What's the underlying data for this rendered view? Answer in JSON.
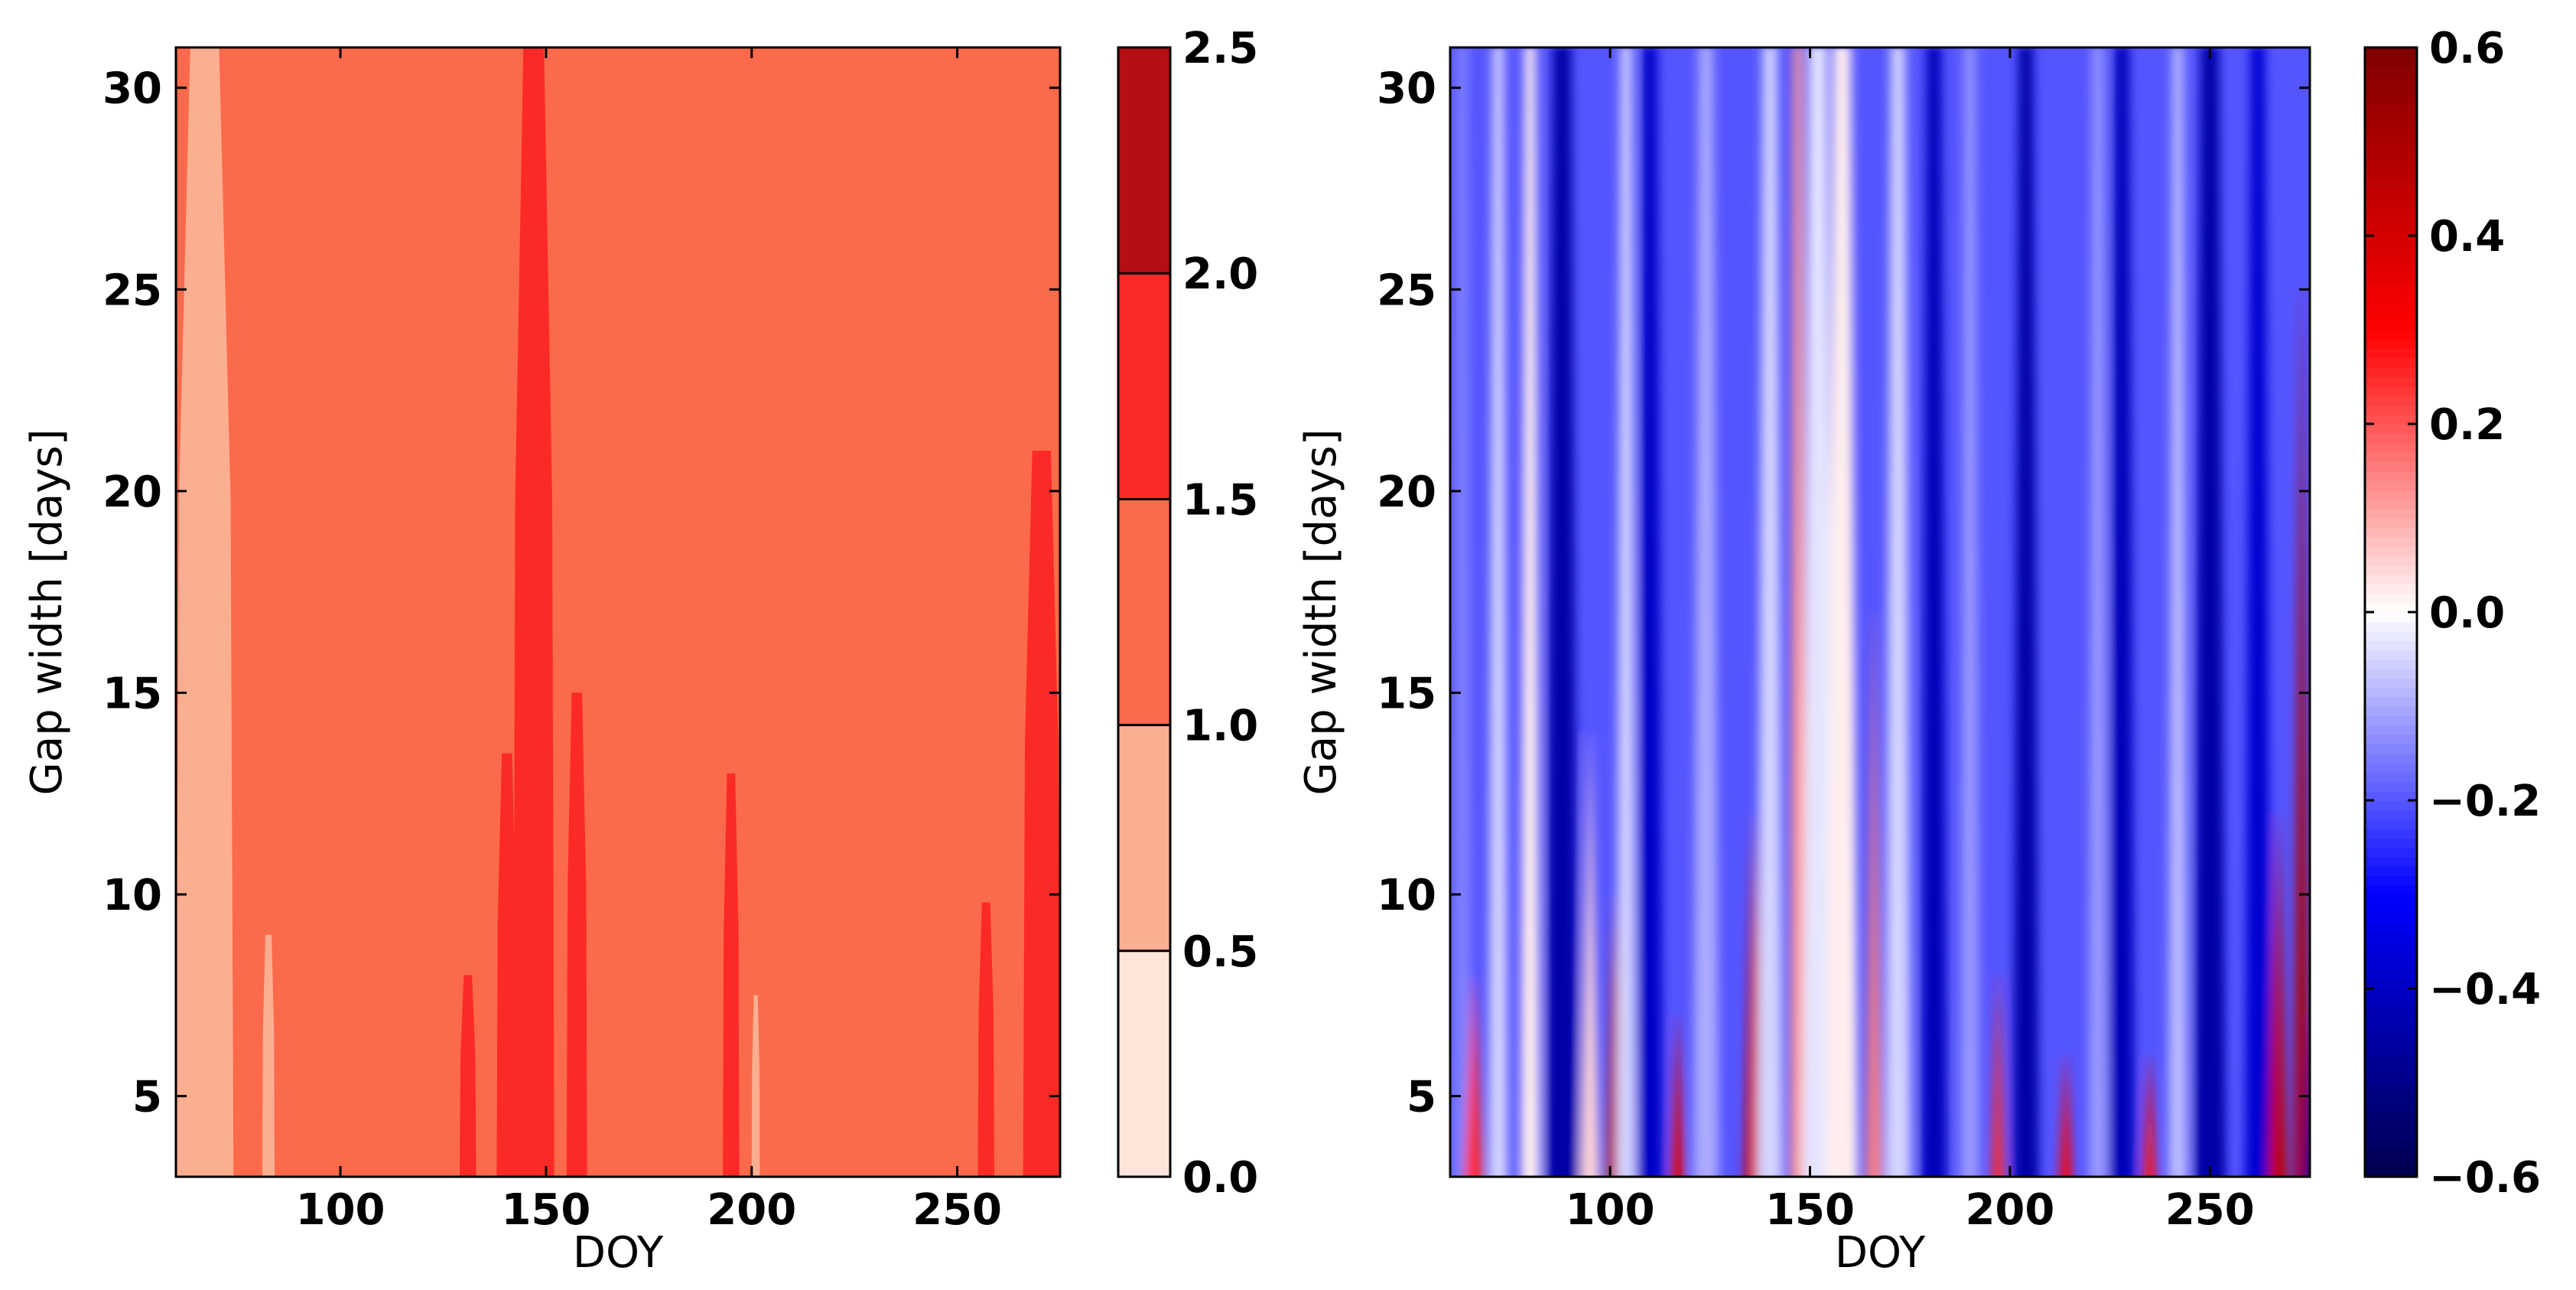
{
  "chart_data": [
    {
      "type": "heatmap",
      "title": "",
      "xlabel": "DOY",
      "ylabel": "Gap width [days]",
      "xlim": [
        60,
        275
      ],
      "ylim": [
        3,
        31
      ],
      "x_ticks": [
        100,
        150,
        200,
        250
      ],
      "y_ticks": [
        5,
        10,
        15,
        20,
        25,
        30
      ],
      "colorbar": {
        "type": "discrete",
        "levels": [
          0.0,
          0.5,
          1.0,
          1.5,
          2.0,
          2.5
        ],
        "tick_labels": [
          "0.0",
          "0.5",
          "1.0",
          "1.5",
          "2.0",
          "2.5"
        ],
        "colors": [
          "#fee5d9",
          "#fcae91",
          "#fb6a4a",
          "#fb2a26",
          "#b50e14"
        ]
      },
      "dominant_band": [
        1.0,
        1.5
      ],
      "regions": [
        {
          "band": [
            0.5,
            1.0
          ],
          "x_range": [
            60,
            74
          ],
          "y_range": [
            3,
            31
          ],
          "note": "tapering band near start"
        },
        {
          "band": [
            0.5,
            1.0
          ],
          "x_range": [
            81,
            84
          ],
          "y_range": [
            3,
            9
          ]
        },
        {
          "band": [
            0.5,
            1.0
          ],
          "x_range": [
            200,
            202
          ],
          "y_range": [
            3,
            7.5
          ]
        },
        {
          "band": [
            1.5,
            2.0
          ],
          "x_range": [
            142,
            152
          ],
          "y_range": [
            3,
            31
          ],
          "note": "main vertical streak"
        },
        {
          "band": [
            1.5,
            2.0
          ],
          "x_range": [
            155,
            160
          ],
          "y_range": [
            3,
            15
          ]
        },
        {
          "band": [
            1.5,
            2.0
          ],
          "x_range": [
            138,
            143
          ],
          "y_range": [
            3,
            13.5
          ]
        },
        {
          "band": [
            1.5,
            2.0
          ],
          "x_range": [
            193,
            197
          ],
          "y_range": [
            3,
            13
          ]
        },
        {
          "band": [
            1.5,
            2.0
          ],
          "x_range": [
            255,
            259
          ],
          "y_range": [
            3,
            9.8
          ]
        },
        {
          "band": [
            1.5,
            2.0
          ],
          "x_range": [
            266,
            275
          ],
          "y_range": [
            3,
            21
          ],
          "note": "right-edge streak"
        },
        {
          "band": [
            1.5,
            2.0
          ],
          "x_range": [
            129,
            133
          ],
          "y_range": [
            3,
            8
          ]
        }
      ]
    },
    {
      "type": "heatmap",
      "title": "",
      "xlabel": "DOY",
      "ylabel": "Gap width [days]",
      "xlim": [
        60,
        275
      ],
      "ylim": [
        3,
        31
      ],
      "x_ticks": [
        100,
        150,
        200,
        250
      ],
      "y_ticks": [
        5,
        10,
        15,
        20,
        25,
        30
      ],
      "colorbar": {
        "type": "continuous",
        "colormap": "seismic",
        "range": [
          -0.6,
          0.6
        ],
        "ticks": [
          -0.6,
          -0.4,
          -0.2,
          0.0,
          0.2,
          0.4,
          0.6
        ],
        "tick_labels": [
          "−0.6",
          "−0.4",
          "−0.2",
          "0.0",
          "0.2",
          "0.4",
          "0.6"
        ]
      },
      "background_value": -0.2,
      "streaks": [
        {
          "x": 63,
          "value": -0.15,
          "width": 3,
          "gap_max": 31
        },
        {
          "x": 66,
          "value": 0.25,
          "width": 3,
          "gap_max": 8
        },
        {
          "x": 72,
          "value": -0.05,
          "width": 3,
          "gap_max": 31
        },
        {
          "x": 80,
          "value": 0.02,
          "width": 3,
          "gap_max": 31
        },
        {
          "x": 88,
          "value": -0.45,
          "width": 5,
          "gap_max": 31
        },
        {
          "x": 95,
          "value": 0.05,
          "width": 3,
          "gap_max": 14
        },
        {
          "x": 101,
          "value": 0.45,
          "width": 2.5,
          "gap_max": 10
        },
        {
          "x": 104,
          "value": -0.05,
          "width": 3,
          "gap_max": 31
        },
        {
          "x": 110,
          "value": -0.4,
          "width": 4,
          "gap_max": 31
        },
        {
          "x": 117,
          "value": 0.35,
          "width": 2,
          "gap_max": 7
        },
        {
          "x": 124,
          "value": -0.1,
          "width": 4,
          "gap_max": 31
        },
        {
          "x": 136,
          "value": 0.4,
          "width": 3,
          "gap_max": 12
        },
        {
          "x": 140,
          "value": -0.05,
          "width": 4,
          "gap_max": 31
        },
        {
          "x": 147,
          "value": 0.12,
          "width": 2.5,
          "gap_max": 31
        },
        {
          "x": 152,
          "value": -0.03,
          "width": 5,
          "gap_max": 31
        },
        {
          "x": 158,
          "value": 0.02,
          "width": 5,
          "gap_max": 31
        },
        {
          "x": 166,
          "value": 0.15,
          "width": 2.5,
          "gap_max": 17
        },
        {
          "x": 172,
          "value": -0.05,
          "width": 4,
          "gap_max": 31
        },
        {
          "x": 181,
          "value": -0.42,
          "width": 4,
          "gap_max": 31
        },
        {
          "x": 190,
          "value": -0.12,
          "width": 3,
          "gap_max": 31
        },
        {
          "x": 197,
          "value": 0.25,
          "width": 2,
          "gap_max": 8
        },
        {
          "x": 204,
          "value": -0.45,
          "width": 4,
          "gap_max": 31
        },
        {
          "x": 214,
          "value": 0.3,
          "width": 2,
          "gap_max": 6
        },
        {
          "x": 222,
          "value": -0.12,
          "width": 3,
          "gap_max": 31
        },
        {
          "x": 228,
          "value": -0.42,
          "width": 4,
          "gap_max": 31
        },
        {
          "x": 235,
          "value": 0.28,
          "width": 2,
          "gap_max": 6
        },
        {
          "x": 242,
          "value": -0.08,
          "width": 3,
          "gap_max": 31
        },
        {
          "x": 250,
          "value": -0.45,
          "width": 5,
          "gap_max": 31
        },
        {
          "x": 262,
          "value": -0.38,
          "width": 4,
          "gap_max": 31
        },
        {
          "x": 267,
          "value": 0.45,
          "width": 3,
          "gap_max": 12
        },
        {
          "x": 273,
          "value": 0.5,
          "width": 2.5,
          "gap_max": 25
        },
        {
          "x": 275,
          "value": -0.5,
          "width": 2,
          "gap_max": 7
        }
      ]
    }
  ]
}
